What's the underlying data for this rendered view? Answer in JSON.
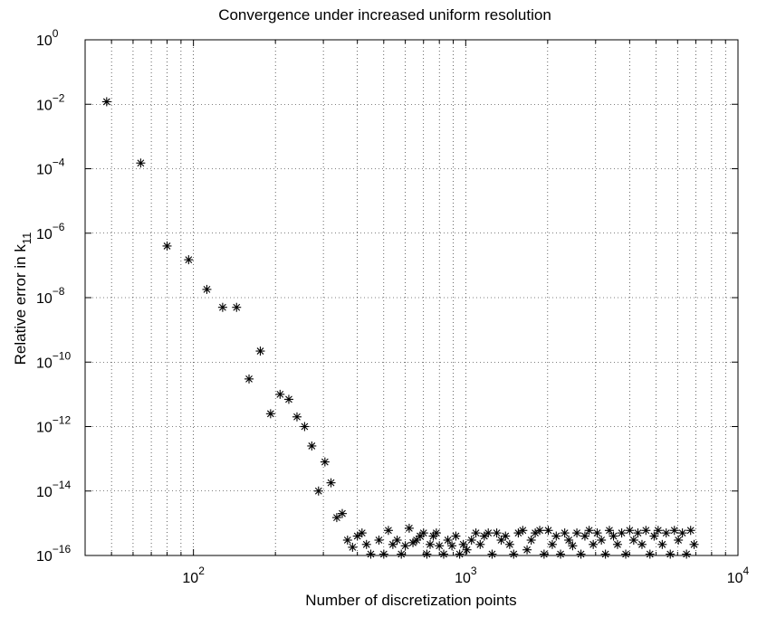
{
  "chart_data": {
    "type": "scatter",
    "title": "Convergence under increased uniform resolution",
    "xlabel": "Number of discretization points",
    "ylabel_main": "Relative error in k",
    "ylabel_sub": "11",
    "xscale": "log",
    "yscale": "log",
    "xlim": [
      40,
      10000
    ],
    "ylim": [
      1e-16,
      1
    ],
    "grid": true,
    "marker": "asterisk",
    "x_ticks": [
      {
        "base": "10",
        "exp": "2",
        "value": 100
      },
      {
        "base": "10",
        "exp": "3",
        "value": 1000
      },
      {
        "base": "10",
        "exp": "4",
        "value": 10000
      }
    ],
    "y_ticks": [
      {
        "base": "10",
        "exp": "0",
        "value": 1
      },
      {
        "base": "10",
        "exp": "−2",
        "value": 0.01
      },
      {
        "base": "10",
        "exp": "−4",
        "value": 0.0001
      },
      {
        "base": "10",
        "exp": "−6",
        "value": 1e-06
      },
      {
        "base": "10",
        "exp": "−8",
        "value": 1e-08
      },
      {
        "base": "10",
        "exp": "−10",
        "value": 1e-10
      },
      {
        "base": "10",
        "exp": "−12",
        "value": 1e-12
      },
      {
        "base": "10",
        "exp": "−14",
        "value": 1e-14
      },
      {
        "base": "10",
        "exp": "−16",
        "value": 1e-16
      }
    ],
    "points": [
      [
        48,
        0.012
      ],
      [
        64,
        0.00015
      ],
      [
        80,
        4e-07
      ],
      [
        96,
        1.5e-07
      ],
      [
        112,
        1.8e-08
      ],
      [
        128,
        5e-09
      ],
      [
        144,
        5e-09
      ],
      [
        176,
        2.2e-10
      ],
      [
        160,
        3e-11
      ],
      [
        208,
        1e-11
      ],
      [
        224,
        7e-12
      ],
      [
        192,
        2.5e-12
      ],
      [
        240,
        2e-12
      ],
      [
        256,
        1e-12
      ],
      [
        272,
        2.5e-13
      ],
      [
        288,
        1e-14
      ],
      [
        304,
        8e-14
      ],
      [
        320,
        1.8e-14
      ],
      [
        336,
        1.5e-15
      ],
      [
        352,
        2e-15
      ],
      [
        368,
        3e-16
      ],
      [
        384,
        1.8e-16
      ],
      [
        400,
        4e-16
      ],
      [
        416,
        5e-16
      ],
      [
        432,
        2.2e-16
      ],
      [
        448,
        1.1e-16
      ],
      [
        480,
        3e-16
      ],
      [
        500,
        1.1e-16
      ],
      [
        520,
        6e-16
      ],
      [
        540,
        2.2e-16
      ],
      [
        560,
        3e-16
      ],
      [
        580,
        1.1e-16
      ],
      [
        600,
        2e-16
      ],
      [
        620,
        7e-16
      ],
      [
        640,
        2.5e-16
      ],
      [
        660,
        3e-16
      ],
      [
        680,
        4e-16
      ],
      [
        700,
        5e-16
      ],
      [
        720,
        1.1e-16
      ],
      [
        740,
        2.2e-16
      ],
      [
        760,
        4e-16
      ],
      [
        780,
        5e-16
      ],
      [
        800,
        2e-16
      ],
      [
        830,
        1.1e-16
      ],
      [
        860,
        3e-16
      ],
      [
        890,
        2e-16
      ],
      [
        920,
        4e-16
      ],
      [
        950,
        1.1e-16
      ],
      [
        980,
        2.2e-16
      ],
      [
        1010,
        1.5e-16
      ],
      [
        1050,
        3e-16
      ],
      [
        1090,
        5e-16
      ],
      [
        1130,
        2.2e-16
      ],
      [
        1170,
        4e-16
      ],
      [
        1210,
        5e-16
      ],
      [
        1250,
        1.1e-16
      ],
      [
        1300,
        5e-16
      ],
      [
        1350,
        3e-16
      ],
      [
        1400,
        4e-16
      ],
      [
        1450,
        2.2e-16
      ],
      [
        1500,
        1.1e-16
      ],
      [
        1560,
        5e-16
      ],
      [
        1620,
        6e-16
      ],
      [
        1680,
        1.5e-16
      ],
      [
        1740,
        3e-16
      ],
      [
        1800,
        5e-16
      ],
      [
        1870,
        6e-16
      ],
      [
        1940,
        1.1e-16
      ],
      [
        2010,
        6e-16
      ],
      [
        2080,
        2.2e-16
      ],
      [
        2150,
        4e-16
      ],
      [
        2230,
        1.1e-16
      ],
      [
        2310,
        5e-16
      ],
      [
        2390,
        3e-16
      ],
      [
        2470,
        2e-16
      ],
      [
        2560,
        5e-16
      ],
      [
        2650,
        1.1e-16
      ],
      [
        2740,
        4e-16
      ],
      [
        2840,
        6e-16
      ],
      [
        2940,
        2.2e-16
      ],
      [
        3040,
        5e-16
      ],
      [
        3150,
        3e-16
      ],
      [
        3260,
        1.1e-16
      ],
      [
        3370,
        6e-16
      ],
      [
        3490,
        4e-16
      ],
      [
        3610,
        2.2e-16
      ],
      [
        3740,
        5e-16
      ],
      [
        3870,
        1.1e-16
      ],
      [
        4000,
        6e-16
      ],
      [
        4140,
        3e-16
      ],
      [
        4290,
        5e-16
      ],
      [
        4440,
        2.2e-16
      ],
      [
        4590,
        6e-16
      ],
      [
        4750,
        1.1e-16
      ],
      [
        4920,
        4e-16
      ],
      [
        5090,
        6e-16
      ],
      [
        5270,
        2.2e-16
      ],
      [
        5450,
        5e-16
      ],
      [
        5640,
        1.1e-16
      ],
      [
        5840,
        6e-16
      ],
      [
        6040,
        3e-16
      ],
      [
        6250,
        5e-16
      ],
      [
        6470,
        1.1e-16
      ],
      [
        6700,
        6e-16
      ],
      [
        6900,
        2.2e-16
      ]
    ]
  }
}
